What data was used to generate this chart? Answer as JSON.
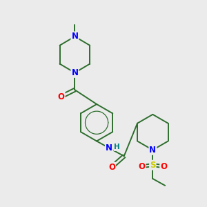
{
  "background_color": "#ebebeb",
  "atom_colors": {
    "N": "#0000ff",
    "O": "#ff0000",
    "S": "#cccc00",
    "C": "#000000",
    "H": "#008080"
  },
  "bond_color": "#2d6e2d",
  "figsize": [
    3.0,
    3.0
  ],
  "dpi": 100,
  "bond_lw": 1.4,
  "font_size": 8.5
}
